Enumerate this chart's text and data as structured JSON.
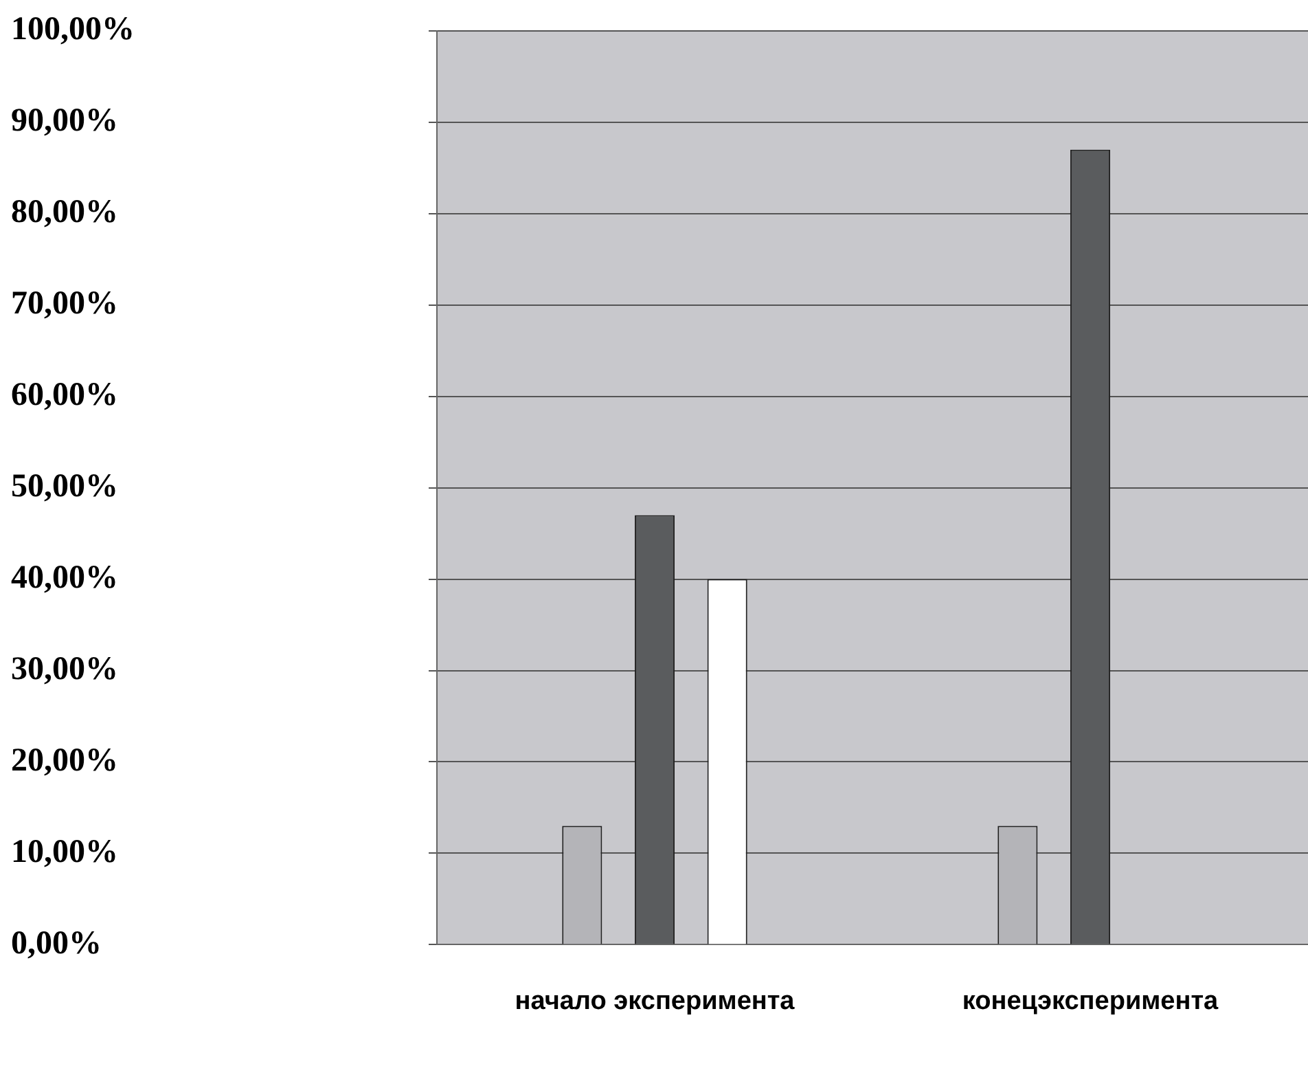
{
  "chart_data": {
    "type": "bar",
    "categories": [
      "начало эксперимента",
      "конецэксперимента"
    ],
    "series": [
      {
        "color": "#b4b4b8",
        "values": [
          13,
          13
        ]
      },
      {
        "color": "#5a5c5e",
        "values": [
          47,
          87
        ]
      },
      {
        "color": "#ffffff",
        "values": [
          40,
          null
        ]
      }
    ],
    "ylim": [
      0,
      100
    ],
    "yticks": [
      {
        "value": 0,
        "label": "0,00%"
      },
      {
        "value": 10,
        "label": "10,00%"
      },
      {
        "value": 20,
        "label": "20,00%"
      },
      {
        "value": 30,
        "label": "30,00%"
      },
      {
        "value": 40,
        "label": "40,00%"
      },
      {
        "value": 50,
        "label": "50,00%"
      },
      {
        "value": 60,
        "label": "60,00%"
      },
      {
        "value": 70,
        "label": "70,00%"
      },
      {
        "value": 80,
        "label": "80,00%"
      },
      {
        "value": 90,
        "label": "90,00%"
      },
      {
        "value": 100,
        "label": "100,00%"
      }
    ],
    "grid": "y",
    "legend": false
  }
}
